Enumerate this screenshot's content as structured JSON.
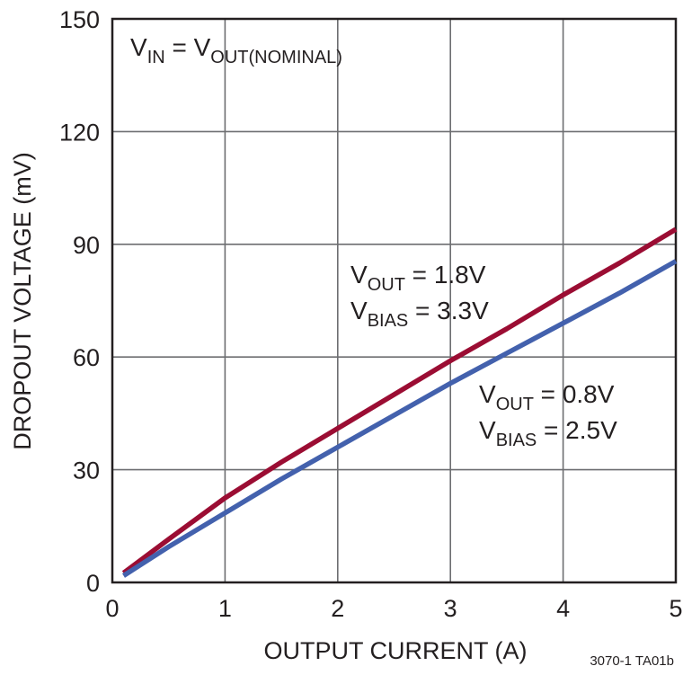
{
  "chart_data": {
    "type": "line",
    "xlabel": "OUTPUT CURRENT (A)",
    "ylabel": "DROPOUT VOLTAGE (mV)",
    "xlim": [
      0,
      5
    ],
    "ylim": [
      0,
      150
    ],
    "xticks": [
      "0",
      "1",
      "2",
      "3",
      "4",
      "5"
    ],
    "yticks": [
      "0",
      "30",
      "60",
      "90",
      "120",
      "150"
    ],
    "grid": true,
    "condition": {
      "main": "V",
      "sub": "IN",
      "eq": " = V",
      "sub2": "OUT(NOMINAL)"
    },
    "series": [
      {
        "color": "#9b0d33",
        "label": {
          "line1_main": "V",
          "line1_sub": "OUT",
          "line1_rest": " = 1.8V",
          "line2_main": "V",
          "line2_sub": "BIAS",
          "line2_rest": " = 3.3V"
        },
        "x": [
          0.1,
          0.5,
          1.0,
          1.5,
          2.0,
          2.5,
          3.0,
          3.5,
          4.0,
          4.5,
          5.0
        ],
        "y": [
          2.5,
          11.5,
          22.5,
          32,
          41,
          50,
          59,
          67.5,
          76.5,
          85,
          94
        ]
      },
      {
        "color": "#4361ad",
        "label": {
          "line1_main": "V",
          "line1_sub": "OUT",
          "line1_rest": " = 0.8V",
          "line2_main": "V",
          "line2_sub": "BIAS",
          "line2_rest": " = 2.5V"
        },
        "x": [
          0.1,
          0.5,
          1.0,
          1.5,
          2.0,
          2.5,
          3.0,
          3.5,
          4.0,
          4.5,
          5.0
        ],
        "y": [
          1.8,
          9.5,
          18.5,
          27.5,
          36,
          44.5,
          53,
          61,
          69,
          77,
          85.5
        ]
      }
    ]
  },
  "footnote": "3070-1 TA01b"
}
